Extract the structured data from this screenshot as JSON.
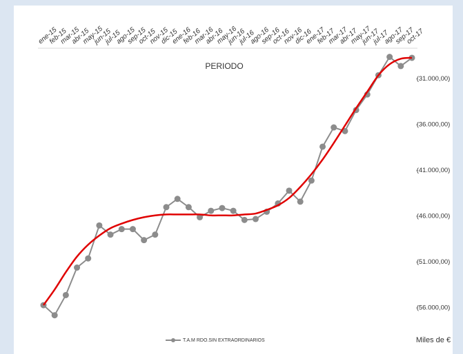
{
  "chart_data": {
    "type": "line",
    "title": "PERIODO",
    "y_unit_label": "Miles de €",
    "categories": [
      "ene-15",
      "feb-15",
      "mar-15",
      "abr-15",
      "may-15",
      "jun-15",
      "jul-15",
      "ago-15",
      "sep-15",
      "oct-15",
      "nov-15",
      "dic-15",
      "ene-16",
      "feb-16",
      "mar-16",
      "abr-16",
      "may-16",
      "jun-16",
      "jul-16",
      "ago-16",
      "sep-16",
      "oct-16",
      "nov-16",
      "dic-16",
      "ene-17",
      "feb-17",
      "mar-17",
      "abr-17",
      "may-17",
      "jun-17",
      "jul-17",
      "ago-17",
      "sep-17",
      "oct-17"
    ],
    "series": [
      {
        "name": "T.A.M RDO.SIN EXTRAORDINARIOS",
        "color": "#8c8c8c",
        "values": [
          -55700,
          -56800,
          -54600,
          -51600,
          -50600,
          -47000,
          -48000,
          -47400,
          -47400,
          -48600,
          -48000,
          -45000,
          -44100,
          -45000,
          -46100,
          -45400,
          -45100,
          -45400,
          -46400,
          -46300,
          -45500,
          -44600,
          -43200,
          -44400,
          -42100,
          -38400,
          -36300,
          -36700,
          -34400,
          -32700,
          -30600,
          -28600,
          -29600,
          -28700
        ]
      }
    ],
    "trendline": {
      "color": "#e00000",
      "values": [
        -55700,
        -54000,
        -52100,
        -50400,
        -49100,
        -48100,
        -47300,
        -46800,
        -46400,
        -46100,
        -45900,
        -45800,
        -45800,
        -45800,
        -45800,
        -45900,
        -45900,
        -45900,
        -45800,
        -45700,
        -45300,
        -44800,
        -44000,
        -42800,
        -41400,
        -39800,
        -38000,
        -36100,
        -34200,
        -32400,
        -30600,
        -29400,
        -28800,
        -28700
      ]
    },
    "ylim": [
      -57800,
      -27500
    ],
    "yticks": [
      {
        "value": -31000,
        "label": "(31.000,00)"
      },
      {
        "value": -36000,
        "label": "(36.000,00)"
      },
      {
        "value": -41000,
        "label": "(41.000,00)"
      },
      {
        "value": -46000,
        "label": "(46.000,00)"
      },
      {
        "value": -51000,
        "label": "(51.000,00)"
      },
      {
        "value": -56000,
        "label": "(56.000,00)"
      }
    ],
    "y_axis_side": "right",
    "x_axis_side": "top",
    "grid": false
  }
}
